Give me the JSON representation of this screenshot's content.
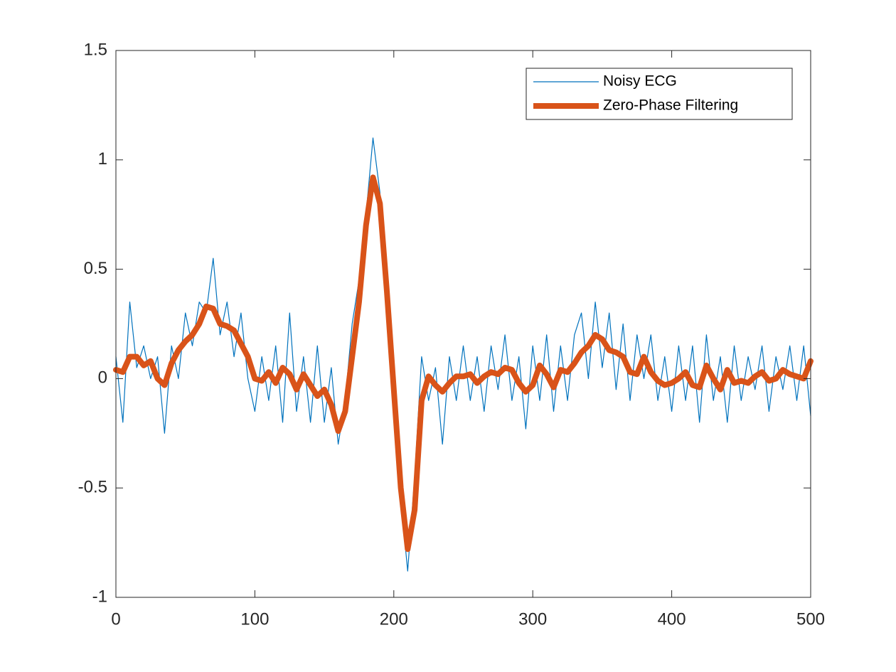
{
  "chart_data": {
    "type": "line",
    "x": [
      0,
      5,
      10,
      15,
      20,
      25,
      30,
      35,
      40,
      45,
      50,
      55,
      60,
      65,
      70,
      75,
      80,
      85,
      90,
      95,
      100,
      105,
      110,
      115,
      120,
      125,
      130,
      135,
      140,
      145,
      150,
      155,
      160,
      165,
      170,
      175,
      180,
      185,
      190,
      195,
      200,
      205,
      210,
      215,
      220,
      225,
      230,
      235,
      240,
      245,
      250,
      255,
      260,
      265,
      270,
      275,
      280,
      285,
      290,
      295,
      300,
      305,
      310,
      315,
      320,
      325,
      330,
      335,
      340,
      345,
      350,
      355,
      360,
      365,
      370,
      375,
      380,
      385,
      390,
      395,
      400,
      405,
      410,
      415,
      420,
      425,
      430,
      435,
      440,
      445,
      450,
      455,
      460,
      465,
      470,
      475,
      480,
      485,
      490,
      495,
      500
    ],
    "series": [
      {
        "name": "Noisy ECG",
        "color": "#0072bd",
        "values": [
          0.1,
          -0.2,
          0.35,
          0.05,
          0.15,
          0.0,
          0.1,
          -0.25,
          0.15,
          0.0,
          0.3,
          0.15,
          0.35,
          0.3,
          0.55,
          0.2,
          0.35,
          0.1,
          0.3,
          0.0,
          -0.15,
          0.1,
          -0.1,
          0.15,
          -0.2,
          0.3,
          -0.15,
          0.1,
          -0.2,
          0.15,
          -0.2,
          0.05,
          -0.3,
          -0.1,
          0.25,
          0.45,
          0.75,
          1.1,
          0.85,
          0.35,
          0.0,
          -0.55,
          -0.88,
          -0.45,
          0.1,
          -0.1,
          0.05,
          -0.3,
          0.1,
          -0.1,
          0.15,
          -0.1,
          0.1,
          -0.15,
          0.15,
          -0.05,
          0.2,
          -0.1,
          0.1,
          -0.23,
          0.15,
          -0.1,
          0.2,
          -0.15,
          0.15,
          -0.1,
          0.2,
          0.3,
          0.0,
          0.35,
          0.05,
          0.3,
          -0.05,
          0.25,
          -0.1,
          0.2,
          0.0,
          0.2,
          -0.1,
          0.1,
          -0.15,
          0.15,
          -0.1,
          0.15,
          -0.2,
          0.2,
          -0.1,
          0.1,
          -0.2,
          0.15,
          -0.1,
          0.1,
          -0.05,
          0.15,
          -0.15,
          0.1,
          -0.05,
          0.15,
          -0.1,
          0.15,
          -0.17
        ]
      },
      {
        "name": "Zero-Phase Filtering",
        "color": "#d95319",
        "values": [
          0.04,
          0.03,
          0.1,
          0.1,
          0.06,
          0.08,
          0.0,
          -0.03,
          0.07,
          0.13,
          0.17,
          0.2,
          0.25,
          0.33,
          0.32,
          0.25,
          0.24,
          0.22,
          0.16,
          0.1,
          0.0,
          -0.01,
          0.03,
          -0.02,
          0.05,
          0.02,
          -0.05,
          0.02,
          -0.03,
          -0.08,
          -0.05,
          -0.12,
          -0.24,
          -0.15,
          0.1,
          0.35,
          0.7,
          0.92,
          0.8,
          0.4,
          -0.05,
          -0.5,
          -0.78,
          -0.6,
          -0.1,
          0.01,
          -0.03,
          -0.06,
          -0.02,
          0.01,
          0.01,
          0.02,
          -0.02,
          0.01,
          0.03,
          0.02,
          0.05,
          0.04,
          -0.02,
          -0.06,
          -0.03,
          0.06,
          0.02,
          -0.04,
          0.04,
          0.03,
          0.07,
          0.12,
          0.15,
          0.2,
          0.18,
          0.13,
          0.12,
          0.1,
          0.03,
          0.02,
          0.1,
          0.03,
          -0.01,
          -0.03,
          -0.02,
          0.0,
          0.03,
          -0.03,
          -0.04,
          0.06,
          0.0,
          -0.05,
          0.04,
          -0.02,
          -0.01,
          -0.02,
          0.01,
          0.03,
          -0.01,
          0.0,
          0.04,
          0.02,
          0.01,
          0.0,
          0.08
        ]
      }
    ],
    "xlim": [
      0,
      500
    ],
    "xticks": [
      0,
      100,
      200,
      300,
      400,
      500
    ],
    "ylim": [
      -1,
      1.5
    ],
    "yticks": [
      -1,
      -0.5,
      0,
      0.5,
      1,
      1.5
    ],
    "legend": "upper right"
  }
}
